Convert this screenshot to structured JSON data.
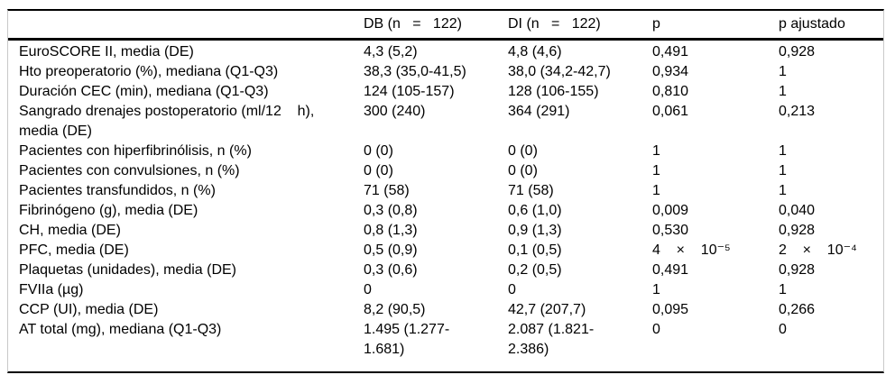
{
  "table": {
    "columns": [
      "",
      "DB (n   =   122)",
      "DI (n   =   122)",
      "p",
      "p ajustado"
    ],
    "rows": [
      {
        "cells": [
          "EuroSCORE II, media (DE)",
          "4,3 (5,2)",
          "4,8 (4,6)",
          "0,491",
          "0,928"
        ]
      },
      {
        "cells": [
          "Hto preoperatorio (%), mediana (Q1-Q3)",
          "38,3 (35,0-41,5)",
          "38,0 (34,2-42,7)",
          "0,934",
          "1"
        ]
      },
      {
        "cells": [
          "Duración CEC (min), mediana (Q1-Q3)",
          "124 (105-157)",
          "128 (106-155)",
          "0,810",
          "1"
        ]
      },
      {
        "cells": [
          "Sangrado drenajes postoperatorio (ml/12    h),\nmedia (DE)",
          "300 (240)",
          "364 (291)",
          "0,061",
          "0,213"
        ]
      },
      {
        "cells": [
          "Pacientes con hiperfibrinólisis, n (%)",
          "0 (0)",
          "0 (0)",
          "1",
          "1"
        ]
      },
      {
        "cells": [
          "Pacientes con convulsiones, n (%)",
          "0 (0)",
          "0 (0)",
          "1",
          "1"
        ]
      },
      {
        "cells": [
          "Pacientes transfundidos, n (%)",
          "71 (58)",
          "71 (58)",
          "1",
          "1"
        ]
      },
      {
        "cells": [
          "Fibrinógeno (g), media (DE)",
          "0,3 (0,8)",
          "0,6 (1,0)",
          "0,009",
          "0,040"
        ]
      },
      {
        "cells": [
          "CH, media (DE)",
          "0,8 (1,3)",
          "0,9 (1,3)",
          "0,530",
          "0,928"
        ]
      },
      {
        "cells": [
          "PFC, media (DE)",
          "0,5 (0,9)",
          "0,1 (0,5)",
          "4    ×    10⁻⁵",
          "2    ×    10⁻⁴"
        ]
      },
      {
        "cells": [
          "Plaquetas (unidades), media (DE)",
          "0,3 (0,6)",
          "0,2 (0,5)",
          "0,491",
          "0,928"
        ]
      },
      {
        "cells": [
          "FVIIa (µg)",
          "0",
          "0",
          "1",
          "1"
        ]
      },
      {
        "cells": [
          "CCP (UI), media (DE)",
          "8,2 (90,5)",
          "42,7 (207,7)",
          "0,095",
          "0,266"
        ]
      },
      {
        "cells": [
          "AT total (mg), mediana (Q1-Q3)",
          "1.495 (1.277-\n1.681)",
          "2.087 (1.821-\n2.386)",
          "0",
          "0"
        ]
      }
    ]
  },
  "colors": {
    "text": "#000000",
    "rule": "#000000",
    "side_rule": "#c9c9c9",
    "background": "#ffffff"
  }
}
